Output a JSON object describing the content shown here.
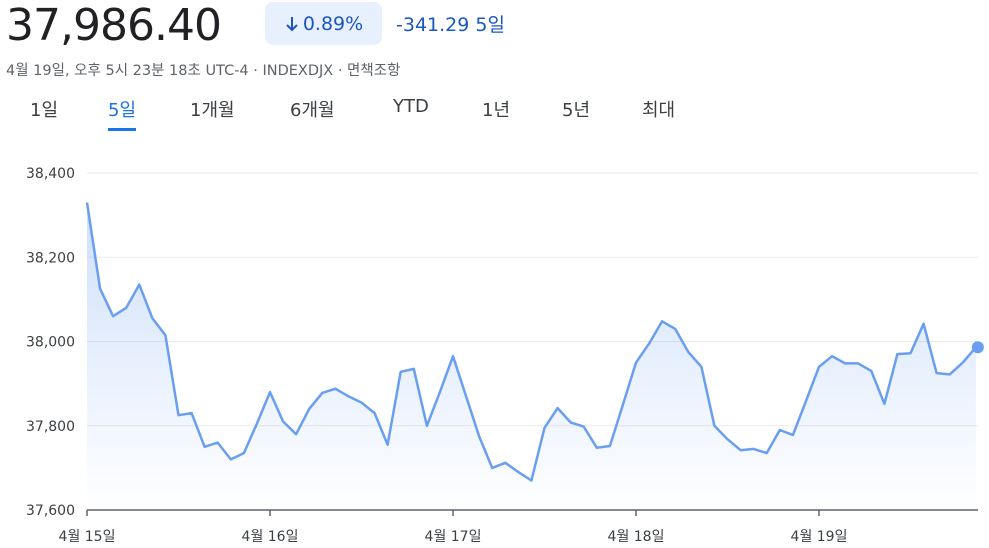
{
  "header": {
    "price": "37,986.40",
    "change_percent": "0.89%",
    "change_value": "-341.29",
    "period": "5일",
    "subtitle": "4월 19일, 오후 5시 23분 18초 UTC-4 · INDEXDJX · 면책조항"
  },
  "tabs": [
    "1일",
    "5일",
    "1개월",
    "6개월",
    "YTD",
    "1년",
    "5년",
    "최대"
  ],
  "selected_tab": 1,
  "chart_data": {
    "type": "line",
    "color": "#6a9ef0",
    "grid": true,
    "categories": [
      "4월 15일",
      null,
      null,
      null,
      null,
      null,
      null,
      null,
      null,
      null,
      null,
      null,
      null,
      null,
      "4월 16일",
      null,
      null,
      null,
      null,
      null,
      null,
      null,
      null,
      null,
      null,
      null,
      null,
      null,
      "4월 17일",
      null,
      null,
      null,
      null,
      null,
      null,
      null,
      null,
      null,
      null,
      null,
      null,
      null,
      "4월 18일",
      null,
      null,
      null,
      null,
      null,
      null,
      null,
      null,
      null,
      null,
      null,
      null,
      null,
      "4월 19일",
      null,
      null,
      null,
      null,
      null,
      null,
      null,
      null,
      null,
      null,
      null,
      null
    ],
    "values": [
      38330,
      38125,
      38060,
      38080,
      38135,
      38055,
      38015,
      37825,
      37830,
      37750,
      37760,
      37720,
      37735,
      37805,
      37880,
      37810,
      37780,
      37840,
      37878,
      37888,
      37870,
      37855,
      37830,
      37755,
      37928,
      37935,
      37800,
      37880,
      37965,
      37870,
      37775,
      37700,
      37712,
      37690,
      37670,
      37795,
      37842,
      37808,
      37798,
      37748,
      37752,
      37850,
      37950,
      37995,
      38048,
      38030,
      37975,
      37940,
      37800,
      37768,
      37742,
      37745,
      37735,
      37790,
      37778,
      37858,
      37940,
      37965,
      37948,
      37948,
      37930,
      37852,
      37970,
      37972,
      38042,
      37925,
      37922,
      37950,
      37986.4
    ],
    "ylim": [
      37600,
      38400
    ],
    "yticks": [
      {
        "value": 37600,
        "label": "37,600"
      },
      {
        "value": 37800,
        "label": "37,800"
      },
      {
        "value": 38000,
        "label": "38,000"
      },
      {
        "value": 38200,
        "label": "38,200"
      },
      {
        "value": 38400,
        "label": "38,400"
      }
    ]
  }
}
